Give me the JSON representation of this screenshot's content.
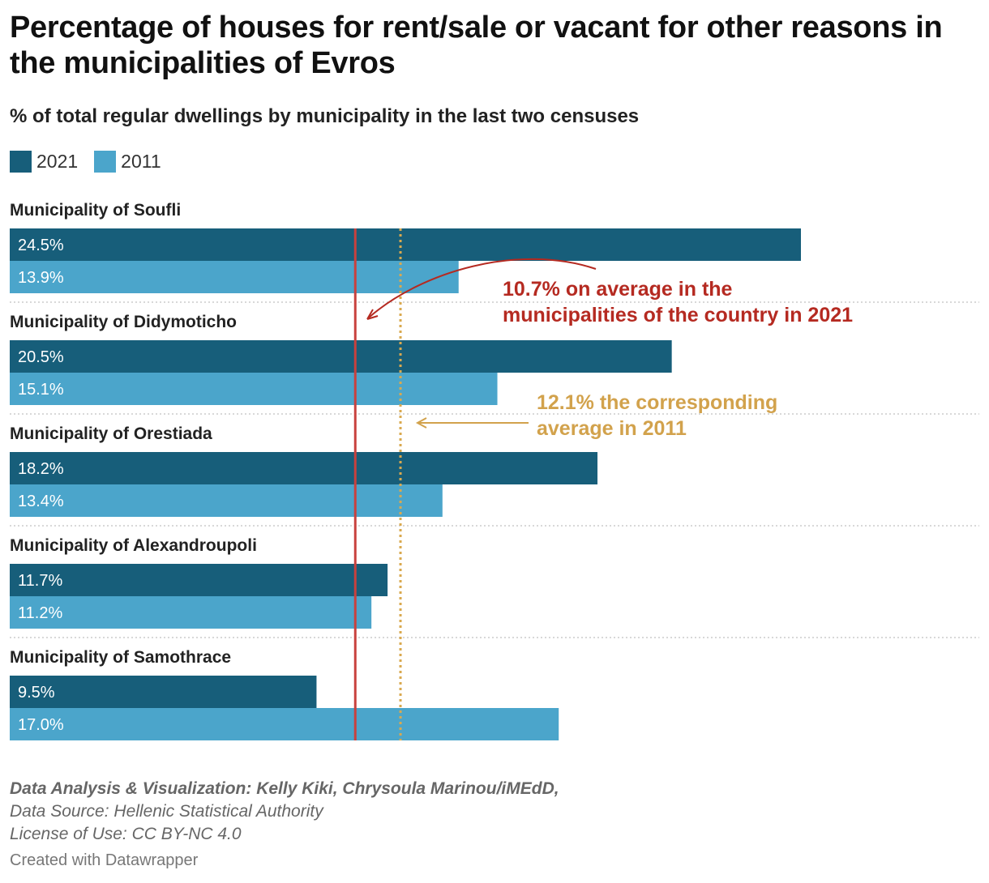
{
  "title": "Percentage of houses for rent/sale or vacant for other reasons in the municipalities of Evros",
  "subtitle": "% of total regular dwellings by municipality in the last two censuses",
  "legend": [
    {
      "label": "2021",
      "color": "#175E7A"
    },
    {
      "label": "2011",
      "color": "#4BA5CB"
    }
  ],
  "chart_data": {
    "type": "bar",
    "orientation": "horizontal",
    "categories": [
      "Municipality of Soufli",
      "Municipality of Didymoticho",
      "Municipality of Orestiada",
      "Municipality of Alexandroupoli",
      "Municipality of Samothrace"
    ],
    "series": [
      {
        "name": "2021",
        "color": "#175E7A",
        "values": [
          24.5,
          20.5,
          18.2,
          11.7,
          9.5
        ],
        "labels": [
          "24.5%",
          "20.5%",
          "18.2%",
          "11.7%",
          "9.5%"
        ]
      },
      {
        "name": "2011",
        "color": "#4BA5CB",
        "values": [
          13.9,
          15.1,
          13.4,
          11.2,
          17.0
        ],
        "labels": [
          "13.9%",
          "15.1%",
          "13.4%",
          "11.2%",
          "17.0%"
        ]
      }
    ],
    "xlim": [
      0,
      24.5
    ],
    "reference_lines": [
      {
        "value": 10.7,
        "color": "#C8413E",
        "style": "solid"
      },
      {
        "value": 12.1,
        "color": "#D9A94F",
        "style": "dotted"
      }
    ],
    "annotations": [
      {
        "lines": [
          "10.7% on average in the",
          "municipalities of the country in 2021"
        ],
        "color": "#B52A21"
      },
      {
        "lines": [
          "12.1% the corresponding",
          "average in 2011"
        ],
        "color": "#D2A24C"
      }
    ]
  },
  "footer": {
    "credit": "Data Analysis & Visualization: Kelly Kiki, Chrysoula Marinou/iMEdD,",
    "source": "Data Source: Hellenic Statistical Authority",
    "license": "License of Use: CC BY-NC 4.0"
  },
  "made_with": "Created with Datawrapper"
}
